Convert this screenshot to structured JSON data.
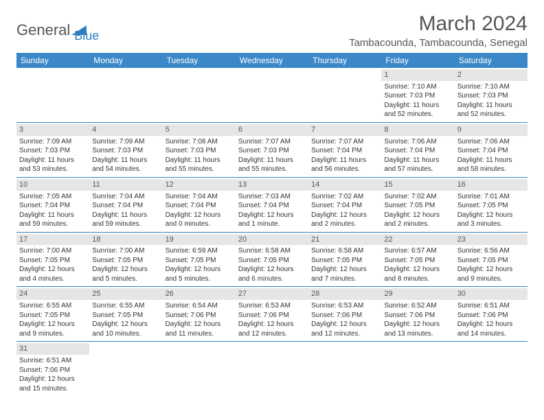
{
  "logo": {
    "word1": "General",
    "word2": "Blue",
    "triangle_color": "#2d7fc1"
  },
  "header": {
    "title": "March 2024",
    "location": "Tambacounda, Tambacounda, Senegal"
  },
  "colors": {
    "header_bg": "#3b87c8",
    "header_text": "#ffffff",
    "cell_border": "#2d7fc1",
    "daynum_bg": "#e6e6e6",
    "text": "#333333"
  },
  "weekdays": [
    "Sunday",
    "Monday",
    "Tuesday",
    "Wednesday",
    "Thursday",
    "Friday",
    "Saturday"
  ],
  "first_weekday_index": 5,
  "days": [
    {
      "n": 1,
      "sunrise": "7:10 AM",
      "sunset": "7:03 PM",
      "daylight": "11 hours and 52 minutes."
    },
    {
      "n": 2,
      "sunrise": "7:10 AM",
      "sunset": "7:03 PM",
      "daylight": "11 hours and 52 minutes."
    },
    {
      "n": 3,
      "sunrise": "7:09 AM",
      "sunset": "7:03 PM",
      "daylight": "11 hours and 53 minutes."
    },
    {
      "n": 4,
      "sunrise": "7:09 AM",
      "sunset": "7:03 PM",
      "daylight": "11 hours and 54 minutes."
    },
    {
      "n": 5,
      "sunrise": "7:08 AM",
      "sunset": "7:03 PM",
      "daylight": "11 hours and 55 minutes."
    },
    {
      "n": 6,
      "sunrise": "7:07 AM",
      "sunset": "7:03 PM",
      "daylight": "11 hours and 55 minutes."
    },
    {
      "n": 7,
      "sunrise": "7:07 AM",
      "sunset": "7:04 PM",
      "daylight": "11 hours and 56 minutes."
    },
    {
      "n": 8,
      "sunrise": "7:06 AM",
      "sunset": "7:04 PM",
      "daylight": "11 hours and 57 minutes."
    },
    {
      "n": 9,
      "sunrise": "7:06 AM",
      "sunset": "7:04 PM",
      "daylight": "11 hours and 58 minutes."
    },
    {
      "n": 10,
      "sunrise": "7:05 AM",
      "sunset": "7:04 PM",
      "daylight": "11 hours and 59 minutes."
    },
    {
      "n": 11,
      "sunrise": "7:04 AM",
      "sunset": "7:04 PM",
      "daylight": "11 hours and 59 minutes."
    },
    {
      "n": 12,
      "sunrise": "7:04 AM",
      "sunset": "7:04 PM",
      "daylight": "12 hours and 0 minutes."
    },
    {
      "n": 13,
      "sunrise": "7:03 AM",
      "sunset": "7:04 PM",
      "daylight": "12 hours and 1 minute."
    },
    {
      "n": 14,
      "sunrise": "7:02 AM",
      "sunset": "7:04 PM",
      "daylight": "12 hours and 2 minutes."
    },
    {
      "n": 15,
      "sunrise": "7:02 AM",
      "sunset": "7:05 PM",
      "daylight": "12 hours and 2 minutes."
    },
    {
      "n": 16,
      "sunrise": "7:01 AM",
      "sunset": "7:05 PM",
      "daylight": "12 hours and 3 minutes."
    },
    {
      "n": 17,
      "sunrise": "7:00 AM",
      "sunset": "7:05 PM",
      "daylight": "12 hours and 4 minutes."
    },
    {
      "n": 18,
      "sunrise": "7:00 AM",
      "sunset": "7:05 PM",
      "daylight": "12 hours and 5 minutes."
    },
    {
      "n": 19,
      "sunrise": "6:59 AM",
      "sunset": "7:05 PM",
      "daylight": "12 hours and 5 minutes."
    },
    {
      "n": 20,
      "sunrise": "6:58 AM",
      "sunset": "7:05 PM",
      "daylight": "12 hours and 6 minutes."
    },
    {
      "n": 21,
      "sunrise": "6:58 AM",
      "sunset": "7:05 PM",
      "daylight": "12 hours and 7 minutes."
    },
    {
      "n": 22,
      "sunrise": "6:57 AM",
      "sunset": "7:05 PM",
      "daylight": "12 hours and 8 minutes."
    },
    {
      "n": 23,
      "sunrise": "6:56 AM",
      "sunset": "7:05 PM",
      "daylight": "12 hours and 9 minutes."
    },
    {
      "n": 24,
      "sunrise": "6:55 AM",
      "sunset": "7:05 PM",
      "daylight": "12 hours and 9 minutes."
    },
    {
      "n": 25,
      "sunrise": "6:55 AM",
      "sunset": "7:05 PM",
      "daylight": "12 hours and 10 minutes."
    },
    {
      "n": 26,
      "sunrise": "6:54 AM",
      "sunset": "7:06 PM",
      "daylight": "12 hours and 11 minutes."
    },
    {
      "n": 27,
      "sunrise": "6:53 AM",
      "sunset": "7:06 PM",
      "daylight": "12 hours and 12 minutes."
    },
    {
      "n": 28,
      "sunrise": "6:53 AM",
      "sunset": "7:06 PM",
      "daylight": "12 hours and 12 minutes."
    },
    {
      "n": 29,
      "sunrise": "6:52 AM",
      "sunset": "7:06 PM",
      "daylight": "12 hours and 13 minutes."
    },
    {
      "n": 30,
      "sunrise": "6:51 AM",
      "sunset": "7:06 PM",
      "daylight": "12 hours and 14 minutes."
    },
    {
      "n": 31,
      "sunrise": "6:51 AM",
      "sunset": "7:06 PM",
      "daylight": "12 hours and 15 minutes."
    }
  ],
  "labels": {
    "sunrise": "Sunrise:",
    "sunset": "Sunset:",
    "daylight": "Daylight:"
  }
}
